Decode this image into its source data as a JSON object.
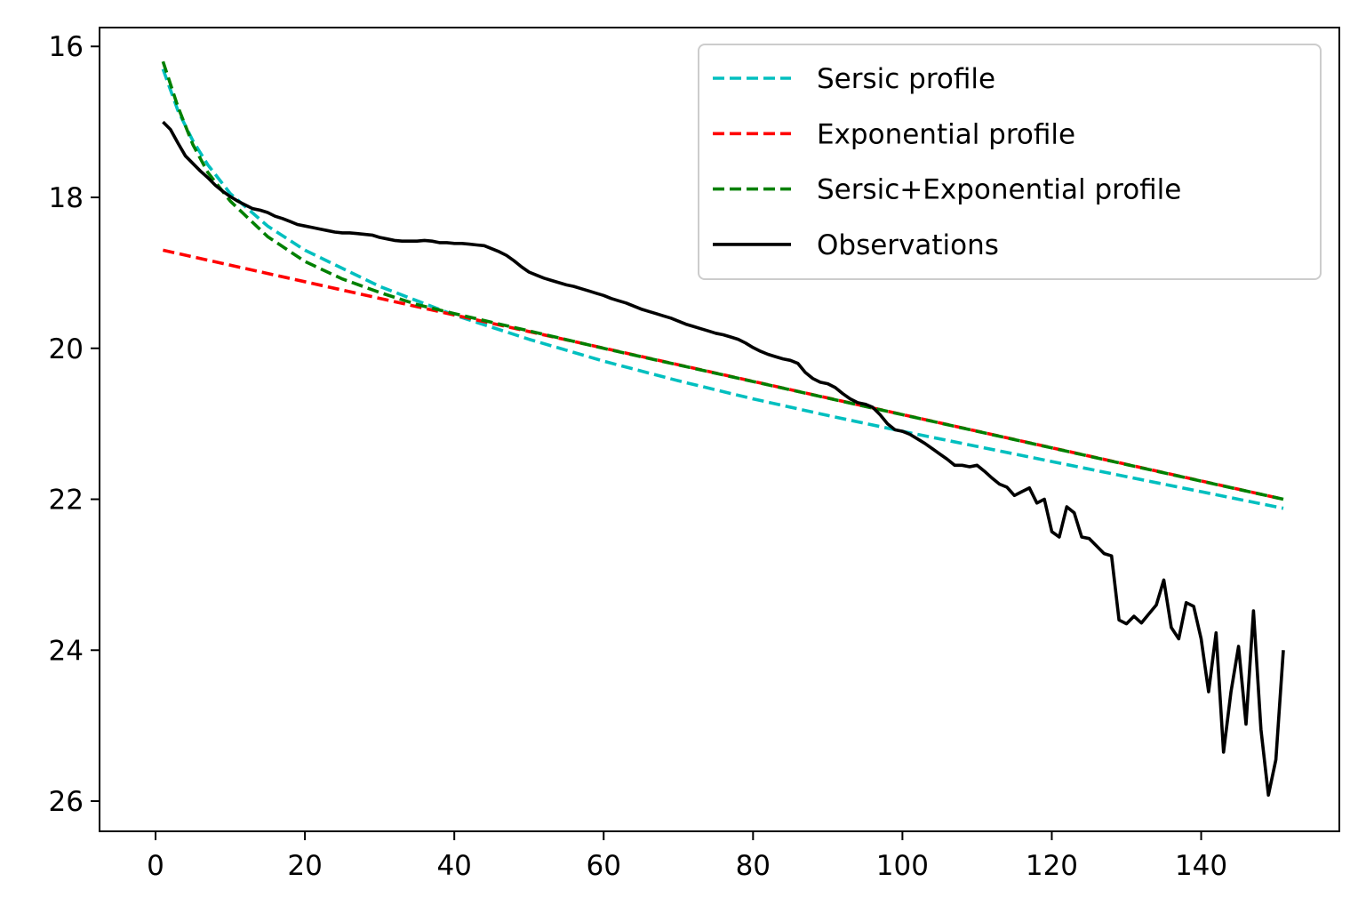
{
  "chart_data": {
    "type": "line",
    "title": "",
    "xlabel": "",
    "ylabel": "",
    "xlim": [
      -7.5,
      158.5
    ],
    "ylim": [
      26.4,
      15.75
    ],
    "y_inverted": true,
    "grid": false,
    "legend_position": "top-right",
    "xticks": [
      0,
      20,
      40,
      60,
      80,
      100,
      120,
      140
    ],
    "yticks": [
      16,
      18,
      20,
      22,
      24,
      26
    ],
    "series": [
      {
        "name": "Sersic profile",
        "style": "dashed",
        "color": "#00bfbf",
        "x": [
          1,
          3,
          5,
          7,
          10,
          15,
          20,
          30,
          40,
          50,
          60,
          70,
          80,
          90,
          100,
          110,
          120,
          130,
          140,
          151
        ],
        "y": [
          16.3,
          16.85,
          17.25,
          17.57,
          17.95,
          18.38,
          18.7,
          19.18,
          19.56,
          19.88,
          20.17,
          20.43,
          20.67,
          20.89,
          21.1,
          21.3,
          21.5,
          21.7,
          21.9,
          22.12
        ]
      },
      {
        "name": "Exponential profile",
        "style": "dashed",
        "color": "#ff0000",
        "x": [
          1,
          151
        ],
        "y": [
          18.7,
          22.0
        ]
      },
      {
        "name": "Sersic+Exponential profile",
        "style": "dashed",
        "color": "#008000",
        "x": [
          1,
          3,
          5,
          7,
          10,
          15,
          20,
          25,
          30,
          35,
          40,
          50,
          60,
          80,
          100,
          120,
          140,
          151
        ],
        "y": [
          16.2,
          16.8,
          17.3,
          17.67,
          18.05,
          18.52,
          18.85,
          19.08,
          19.26,
          19.42,
          19.54,
          19.77,
          20.0,
          20.44,
          20.88,
          21.32,
          21.76,
          22.0
        ]
      },
      {
        "name": "Observations",
        "style": "solid",
        "color": "#000000",
        "x": [
          1,
          2,
          3,
          4,
          5,
          6,
          7,
          8,
          9,
          10,
          11,
          12,
          13,
          14,
          15,
          16,
          17,
          18,
          19,
          20,
          21,
          22,
          23,
          24,
          25,
          26,
          27,
          28,
          29,
          30,
          31,
          32,
          33,
          34,
          35,
          36,
          37,
          38,
          39,
          40,
          41,
          42,
          43,
          44,
          45,
          46,
          47,
          48,
          49,
          50,
          51,
          52,
          53,
          54,
          55,
          56,
          57,
          58,
          59,
          60,
          61,
          62,
          63,
          64,
          65,
          66,
          67,
          68,
          69,
          70,
          71,
          72,
          73,
          74,
          75,
          76,
          77,
          78,
          79,
          80,
          81,
          82,
          83,
          84,
          85,
          86,
          87,
          88,
          89,
          90,
          91,
          92,
          93,
          94,
          95,
          96,
          97,
          98,
          99,
          100,
          101,
          102,
          103,
          104,
          105,
          106,
          107,
          108,
          109,
          110,
          111,
          112,
          113,
          114,
          115,
          116,
          117,
          118,
          119,
          120,
          121,
          122,
          123,
          124,
          125,
          126,
          127,
          128,
          129,
          130,
          131,
          132,
          133,
          134,
          135,
          136,
          137,
          138,
          139,
          140,
          141,
          142,
          143,
          144,
          145,
          146,
          147,
          148,
          149,
          150,
          151
        ],
        "y": [
          17.0,
          17.1,
          17.28,
          17.45,
          17.55,
          17.65,
          17.74,
          17.84,
          17.92,
          17.99,
          18.05,
          18.1,
          18.15,
          18.17,
          18.2,
          18.25,
          18.28,
          18.32,
          18.36,
          18.38,
          18.4,
          18.42,
          18.44,
          18.46,
          18.47,
          18.47,
          18.48,
          18.49,
          18.5,
          18.53,
          18.55,
          18.57,
          18.58,
          18.58,
          18.58,
          18.57,
          18.58,
          18.6,
          18.6,
          18.61,
          18.61,
          18.62,
          18.63,
          18.64,
          18.68,
          18.72,
          18.77,
          18.84,
          18.92,
          18.99,
          19.03,
          19.07,
          19.1,
          19.13,
          19.16,
          19.18,
          19.21,
          19.24,
          19.27,
          19.3,
          19.34,
          19.37,
          19.4,
          19.44,
          19.48,
          19.51,
          19.54,
          19.57,
          19.6,
          19.64,
          19.68,
          19.71,
          19.74,
          19.77,
          19.8,
          19.82,
          19.85,
          19.88,
          19.93,
          19.99,
          20.04,
          20.08,
          20.11,
          20.14,
          20.16,
          20.2,
          20.32,
          20.4,
          20.45,
          20.47,
          20.52,
          20.6,
          20.67,
          20.72,
          20.74,
          20.78,
          20.88,
          21.0,
          21.08,
          21.1,
          21.14,
          21.2,
          21.26,
          21.33,
          21.4,
          21.47,
          21.55,
          21.55,
          21.57,
          21.55,
          21.63,
          21.72,
          21.8,
          21.84,
          21.95,
          21.9,
          21.85,
          22.05,
          22.0,
          22.43,
          22.5,
          22.1,
          22.18,
          22.5,
          22.52,
          22.62,
          22.72,
          22.75,
          23.6,
          23.65,
          23.55,
          23.64,
          23.52,
          23.4,
          23.07,
          23.7,
          23.85,
          23.37,
          23.42,
          23.85,
          24.55,
          23.77,
          25.35,
          24.55,
          23.95,
          24.98,
          23.48,
          25.05,
          25.92,
          25.45,
          24.0
        ]
      }
    ]
  }
}
